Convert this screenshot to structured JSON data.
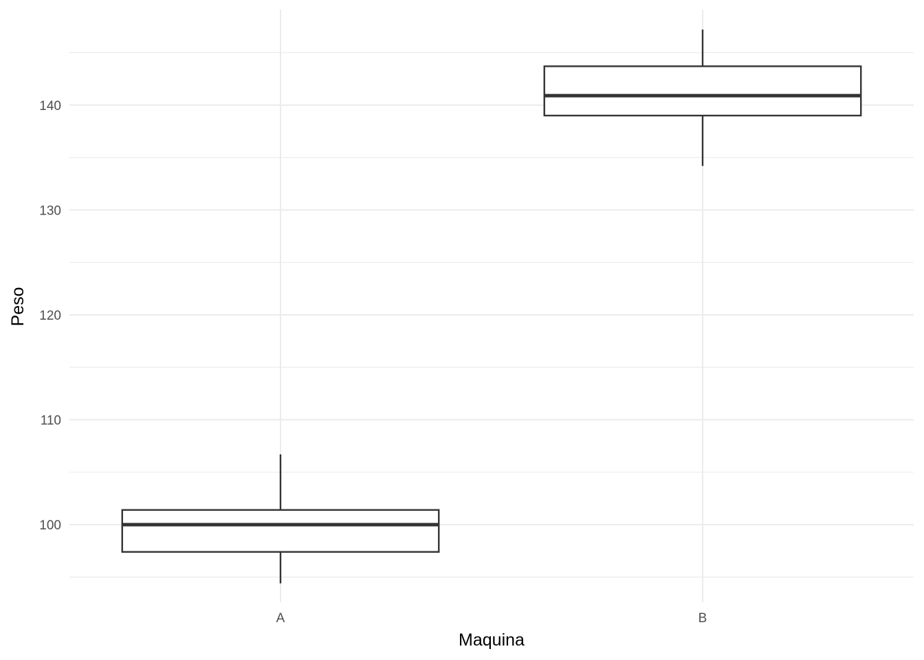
{
  "chart_data": {
    "type": "boxplot",
    "title": "",
    "xlabel": "Maquina",
    "ylabel": "Peso",
    "categories": [
      "A",
      "B"
    ],
    "boxes": [
      {
        "category": "A",
        "lower_whisker": 94.4,
        "q1": 97.4,
        "median": 100.0,
        "q3": 101.4,
        "upper_whisker": 106.7
      },
      {
        "category": "B",
        "lower_whisker": 134.2,
        "q1": 139.0,
        "median": 140.9,
        "q3": 143.7,
        "upper_whisker": 147.2
      }
    ],
    "ylim": [
      92.6,
      149.1
    ],
    "y_ticks": [
      100,
      110,
      120,
      130,
      140
    ],
    "y_tick_labels": [
      "100",
      "110",
      "120",
      "130",
      "140"
    ],
    "grid": true,
    "legend": "none",
    "colors": {
      "box_fill": "#ffffff",
      "box_line": "#333333",
      "grid": "#ebebeb"
    }
  }
}
